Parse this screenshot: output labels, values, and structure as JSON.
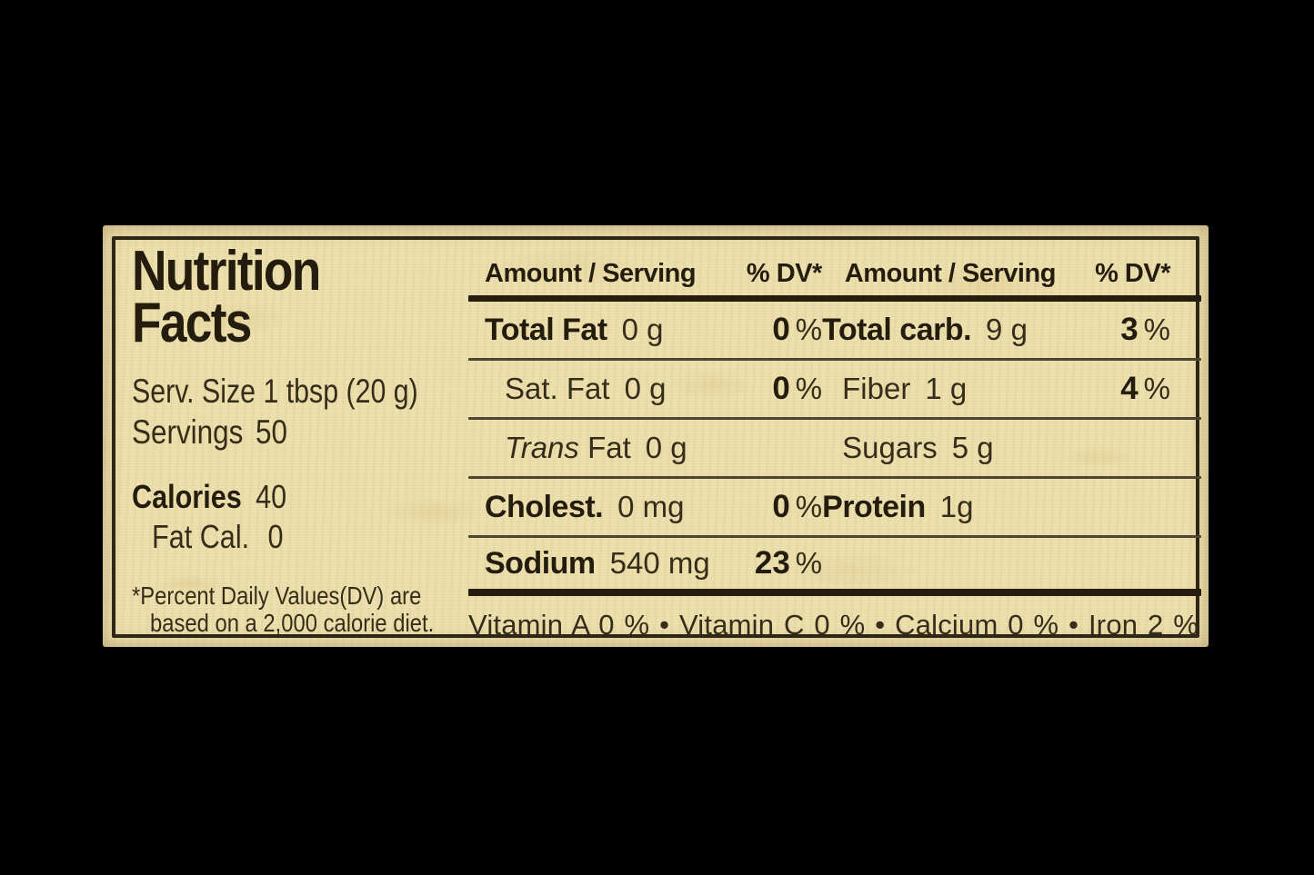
{
  "label": {
    "title_line1": "Nutrition",
    "title_line2": "Facts",
    "serv_size": "Serv. Size 1 tbsp (20 g)",
    "servings_label": "Servings",
    "servings_value": "50",
    "calories_label": "Calories",
    "calories_value": "40",
    "fat_cal_label": "Fat Cal.",
    "fat_cal_value": "0",
    "footnote_line1": "*Percent Daily Values(DV) are",
    "footnote_line2": "based on a 2,000 calorie diet.",
    "pct": "%",
    "header": {
      "amount": "Amount / Serving",
      "dv": "% DV*"
    },
    "rows": {
      "total_fat": {
        "name": "Total Fat",
        "value": "0 g",
        "dv": "0"
      },
      "total_carb": {
        "name": "Total carb.",
        "value": "9 g",
        "dv": "3"
      },
      "sat_fat": {
        "name": "Sat. Fat",
        "value": "0 g",
        "dv": "0"
      },
      "fiber": {
        "name": "Fiber",
        "value": "1 g",
        "dv": "4"
      },
      "trans_fat": {
        "name_italic": "Trans",
        "name_rest": " Fat",
        "value": "0 g"
      },
      "sugars": {
        "name": "Sugars",
        "value": "5 g"
      },
      "cholesterol": {
        "name": "Cholest.",
        "value": "0 mg",
        "dv": "0"
      },
      "protein": {
        "name": "Protein",
        "value": "1g"
      },
      "sodium": {
        "name": "Sodium",
        "value": "540 mg",
        "dv": "23"
      }
    },
    "vitamins_line": "Vitamin A 0 % • Vitamin C 0 % • Calcium 0 % • Iron 2 %",
    "colors": {
      "background": "#000000",
      "label_bg": "#ece0ae",
      "ink": "#2a2313",
      "rule_thin": "#4e4431",
      "rule_thick": "#251e0e"
    }
  }
}
